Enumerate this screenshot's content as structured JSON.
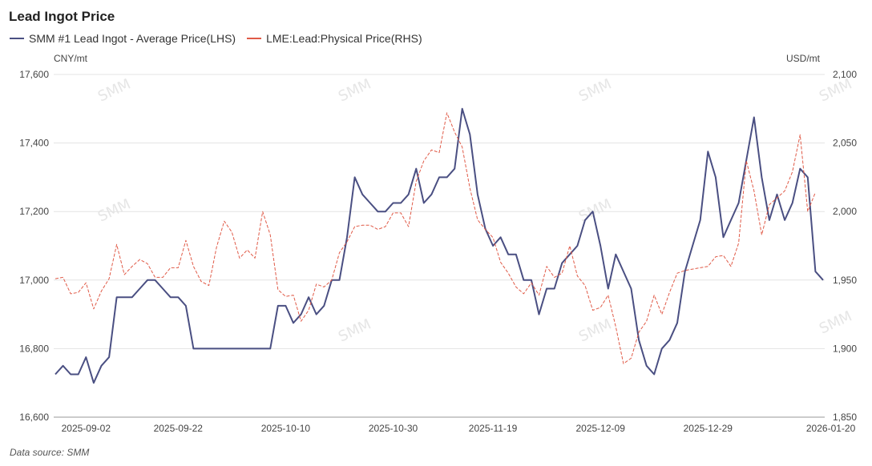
{
  "chart_data": {
    "type": "line",
    "title": "Lead Ingot Price",
    "left_axis": {
      "unit": "CNY/mt",
      "ylim": [
        16600,
        17600
      ],
      "ticks": [
        "16,600",
        "16,800",
        "17,000",
        "17,200",
        "17,400",
        "17,600"
      ]
    },
    "right_axis": {
      "unit": "USD/mt",
      "ylim": [
        1850,
        2100
      ],
      "ticks": [
        "1,850",
        "1,900",
        "1,950",
        "2,000",
        "2,050",
        "2,100"
      ]
    },
    "x_ticks": [
      "2025-09-02",
      "2025-09-22",
      "2025-10-10",
      "2025-10-30",
      "2025-11-19",
      "2025-12-09",
      "2025-12-29",
      "2026-01-20"
    ],
    "x_tick_index": [
      4,
      16,
      30,
      44,
      57,
      71,
      85,
      101
    ],
    "grid": true,
    "legend_position": "top-left",
    "series": [
      {
        "name": "SMM #1 Lead Ingot - Average Price(LHS)",
        "axis": "left",
        "color": "#4a4f82",
        "style": "solid",
        "values": [
          16725,
          16750,
          16725,
          16725,
          16775,
          16700,
          16750,
          16775,
          16950,
          16950,
          16950,
          16975,
          17000,
          17000,
          16975,
          16950,
          16950,
          16925,
          16800,
          16800,
          16800,
          16800,
          16800,
          16800,
          16800,
          16800,
          16800,
          16800,
          16800,
          16925,
          16925,
          16875,
          16900,
          16950,
          16900,
          16925,
          17000,
          17000,
          17125,
          17300,
          17250,
          17225,
          17200,
          17200,
          17225,
          17225,
          17250,
          17325,
          17225,
          17250,
          17300,
          17300,
          17325,
          17500,
          17425,
          17250,
          17150,
          17100,
          17125,
          17075,
          17075,
          17000,
          17000,
          16900,
          16975,
          16975,
          17050,
          17075,
          17100,
          17175,
          17200,
          17100,
          16975,
          17075,
          17025,
          16975,
          16825,
          16750,
          16725,
          16800,
          16825,
          16875,
          17025,
          17100,
          17175,
          17375,
          17300,
          17125,
          17175,
          17225,
          17350,
          17475,
          17300,
          17175,
          17250,
          17175,
          17225,
          17325,
          17300,
          17025,
          17000
        ]
      },
      {
        "name": "LME:Lead:Physical Price(RHS)",
        "axis": "right",
        "color": "#e05a47",
        "style": "dashed",
        "values": [
          1951,
          1952,
          1940,
          1941,
          1948,
          1929,
          1942,
          1951,
          1976,
          1954,
          1960,
          1965,
          1962,
          1952,
          1952,
          1959,
          1959,
          1979,
          1960,
          1949,
          1946,
          1974,
          1993,
          1985,
          1966,
          1972,
          1966,
          2000,
          1983,
          1943,
          1938,
          1939,
          1920,
          1928,
          1947,
          1945,
          1950,
          1970,
          1978,
          1989,
          1990,
          1990,
          1987,
          1989,
          1999,
          1999,
          1989,
          2022,
          2037,
          2045,
          2043,
          2072,
          2058,
          2047,
          2017,
          1994,
          1987,
          1981,
          1963,
          1955,
          1945,
          1940,
          1948,
          1939,
          1960,
          1952,
          1955,
          1975,
          1953,
          1946,
          1928,
          1930,
          1939,
          1916,
          1889,
          1893,
          1912,
          1920,
          1939,
          1925,
          1941,
          1955,
          1957,
          1958,
          1959,
          1960,
          1967,
          1968,
          1960,
          1977,
          2037,
          2015,
          1983,
          2005,
          2010,
          2015,
          2029,
          2056,
          2000,
          2014
        ]
      }
    ]
  },
  "source": "Data source:  SMM",
  "watermark": "SMM"
}
